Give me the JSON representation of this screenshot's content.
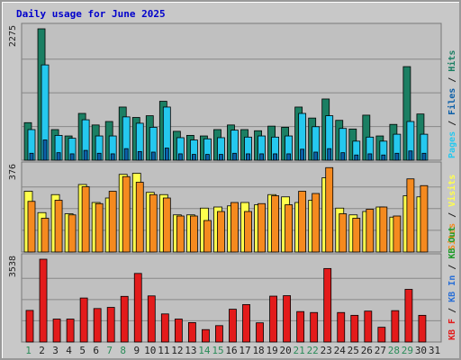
{
  "title": "Daily usage for June 2025",
  "colors": {
    "background": "#c8c8c8",
    "plot_bg": "#c0c0c0",
    "title": "#0000cc",
    "hits": "#1b7f63",
    "files": "#25c8ef",
    "pages": "#0c5fa8",
    "visits": "#ffff4d",
    "sites": "#f58a1f",
    "kb_in": "#2a6fd6",
    "kb_out": "#1e9b28",
    "kbf": "#e31b1b",
    "weekend": "#2a8c59",
    "axis": "#222222"
  },
  "panels": [
    {
      "id": "hits_files_pages",
      "max_label": "2275",
      "legend": [
        "Pages",
        "Files",
        "Hits"
      ],
      "legend_colors": [
        "#25c8ef",
        "#0c5fa8",
        "#1b7f63"
      ]
    },
    {
      "id": "visits_sites",
      "max_label": "376",
      "legend": [
        "Sites",
        "Visits"
      ],
      "legend_colors": [
        "#f58a1f",
        "#ffff4d"
      ]
    },
    {
      "id": "kbytes",
      "max_label": "3538",
      "legend": [
        "KB F",
        "KB In",
        "KB Out"
      ],
      "legend_colors": [
        "#e31b1b",
        "#2a6fd6",
        "#1e9b28"
      ]
    }
  ],
  "chart_data": {
    "type": "bar",
    "title": "Daily usage for June 2025",
    "days": [
      "1",
      "2",
      "3",
      "4",
      "5",
      "6",
      "7",
      "8",
      "9",
      "10",
      "11",
      "12",
      "13",
      "14",
      "15",
      "16",
      "17",
      "18",
      "19",
      "20",
      "21",
      "22",
      "23",
      "24",
      "25",
      "26",
      "27",
      "28",
      "29",
      "30",
      "31"
    ],
    "weekend_days": [
      "1",
      "7",
      "8",
      "14",
      "15",
      "21",
      "22",
      "28",
      "29"
    ],
    "series": [
      {
        "name": "Hits",
        "panel": 0,
        "values": [
          650,
          2275,
          530,
          420,
          810,
          610,
          670,
          920,
          740,
          770,
          1020,
          500,
          430,
          420,
          530,
          610,
          530,
          510,
          590,
          570,
          920,
          730,
          1060,
          690,
          540,
          780,
          420,
          620,
          1620,
          800,
          0
        ]
      },
      {
        "name": "Files",
        "panel": 0,
        "values": [
          530,
          1650,
          430,
          380,
          700,
          420,
          420,
          750,
          640,
          570,
          920,
          390,
          350,
          370,
          390,
          520,
          400,
          420,
          400,
          420,
          810,
          580,
          770,
          550,
          330,
          400,
          330,
          450,
          670,
          450,
          0
        ]
      },
      {
        "name": "Pages",
        "panel": 0,
        "values": [
          120,
          350,
          130,
          110,
          170,
          120,
          110,
          200,
          150,
          140,
          210,
          110,
          100,
          100,
          100,
          120,
          110,
          110,
          110,
          110,
          190,
          140,
          200,
          130,
          90,
          110,
          90,
          120,
          160,
          120,
          0
        ]
      },
      {
        "name": "Visits",
        "panel": 1,
        "values": [
          270,
          175,
          255,
          170,
          300,
          220,
          240,
          345,
          350,
          265,
          255,
          165,
          165,
          195,
          200,
          205,
          220,
          210,
          255,
          245,
          220,
          230,
          330,
          195,
          165,
          180,
          200,
          155,
          250,
          245,
          0
        ]
      },
      {
        "name": "Sites",
        "panel": 1,
        "values": [
          225,
          150,
          230,
          165,
          290,
          215,
          270,
          335,
          310,
          255,
          240,
          160,
          160,
          140,
          180,
          220,
          180,
          215,
          250,
          210,
          270,
          260,
          375,
          170,
          150,
          190,
          200,
          160,
          325,
          295,
          0
        ]
      },
      {
        "name": "KB F",
        "panel": 2,
        "values": [
          1350,
          3538,
          980,
          980,
          1880,
          1430,
          1480,
          1950,
          2930,
          1970,
          1200,
          980,
          830,
          530,
          700,
          1400,
          1600,
          820,
          1960,
          1980,
          1300,
          1260,
          3140,
          1260,
          1140,
          1320,
          630,
          1340,
          2250,
          1140,
          0
        ]
      }
    ],
    "ymax": [
      2275,
      376,
      3538
    ]
  }
}
